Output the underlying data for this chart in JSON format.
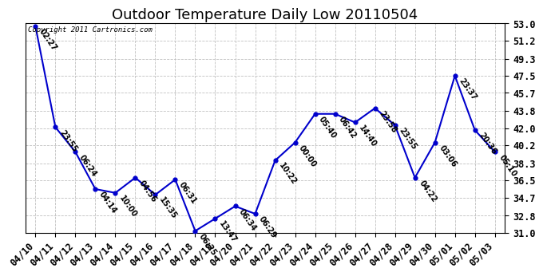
{
  "title": "Outdoor Temperature Daily Low 20110504",
  "copyright": "Copyright 2011 Cartronics.com",
  "x_labels": [
    "04/10",
    "04/11",
    "04/12",
    "04/13",
    "04/14",
    "04/15",
    "04/16",
    "04/17",
    "04/18",
    "04/19",
    "04/20",
    "04/21",
    "04/22",
    "04/23",
    "04/24",
    "04/25",
    "04/26",
    "04/27",
    "04/28",
    "04/29",
    "04/30",
    "05/01",
    "05/02",
    "05/03"
  ],
  "y_values": [
    52.7,
    42.1,
    39.5,
    35.6,
    35.2,
    36.8,
    35.0,
    36.6,
    31.2,
    32.5,
    33.8,
    33.0,
    38.6,
    40.5,
    43.5,
    43.5,
    42.6,
    44.1,
    42.3,
    36.8,
    40.5,
    47.5,
    41.8,
    39.5
  ],
  "point_labels": [
    "02:27",
    "23:55",
    "06:24",
    "04:14",
    "10:00",
    "04:56",
    "15:35",
    "06:31",
    "06:25",
    "13:47",
    "06:34",
    "06:29",
    "10:22",
    "00:00",
    "05:40",
    "06:42",
    "14:40",
    "23:58",
    "23:55",
    "04:22",
    "03:06",
    "23:37",
    "20:36",
    "05:10"
  ],
  "line_color": "#0000cc",
  "marker_color": "#0000cc",
  "bg_color": "#ffffff",
  "grid_color": "#c0c0c0",
  "ylim_min": 31.0,
  "ylim_max": 53.0,
  "yticks": [
    31.0,
    32.8,
    34.7,
    36.5,
    38.3,
    40.2,
    42.0,
    43.8,
    45.7,
    47.5,
    49.3,
    51.2,
    53.0
  ],
  "title_fontsize": 13,
  "tick_fontsize": 8.5,
  "label_fontsize": 7,
  "xlabel_rotation": 45,
  "point_label_rotation": -55,
  "point_label_fontsize": 7
}
